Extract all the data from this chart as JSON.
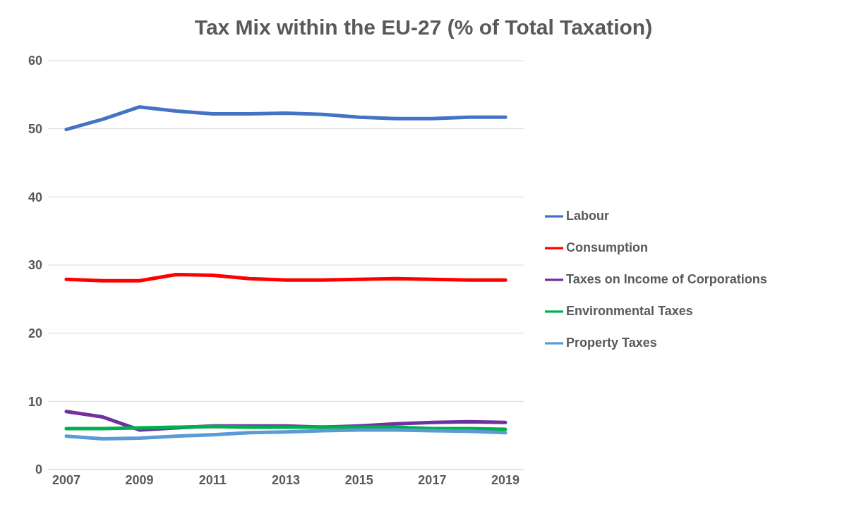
{
  "chart_data": {
    "type": "line",
    "title": "Tax Mix within the EU-27 (% of Total Taxation)",
    "x": [
      2007,
      2008,
      2009,
      2010,
      2011,
      2012,
      2013,
      2014,
      2015,
      2016,
      2017,
      2018,
      2019
    ],
    "xlim": [
      2006.5,
      2019.5
    ],
    "xticks": [
      2007,
      2009,
      2011,
      2013,
      2015,
      2017,
      2019
    ],
    "ylim": [
      0,
      60
    ],
    "yticks": [
      0,
      10,
      20,
      30,
      40,
      50,
      60
    ],
    "grid": "y",
    "legend": "right",
    "marker": "none",
    "line_style": "solid",
    "series": [
      {
        "name": "Labour",
        "color": "#4472c4",
        "values": [
          49.9,
          51.4,
          53.2,
          52.6,
          52.2,
          52.2,
          52.3,
          52.1,
          51.7,
          51.5,
          51.5,
          51.7,
          51.7
        ]
      },
      {
        "name": "Consumption",
        "color": "#ff0000",
        "values": [
          27.9,
          27.7,
          27.7,
          28.6,
          28.5,
          28.0,
          27.8,
          27.8,
          27.9,
          28.0,
          27.9,
          27.8,
          27.8
        ]
      },
      {
        "name": "Taxes on Income of Corporations",
        "color": "#7030a0",
        "values": [
          8.5,
          7.7,
          5.8,
          6.1,
          6.4,
          6.4,
          6.4,
          6.2,
          6.4,
          6.7,
          6.9,
          7.0,
          6.9
        ]
      },
      {
        "name": "Environmental Taxes",
        "color": "#00b050",
        "values": [
          6.0,
          6.0,
          6.1,
          6.2,
          6.3,
          6.2,
          6.2,
          6.2,
          6.2,
          6.2,
          6.0,
          6.0,
          5.9
        ]
      },
      {
        "name": "Property Taxes",
        "color": "#5b9bd5",
        "values": [
          4.9,
          4.5,
          4.6,
          4.9,
          5.1,
          5.4,
          5.5,
          5.7,
          5.8,
          5.8,
          5.7,
          5.6,
          5.4
        ]
      }
    ]
  }
}
